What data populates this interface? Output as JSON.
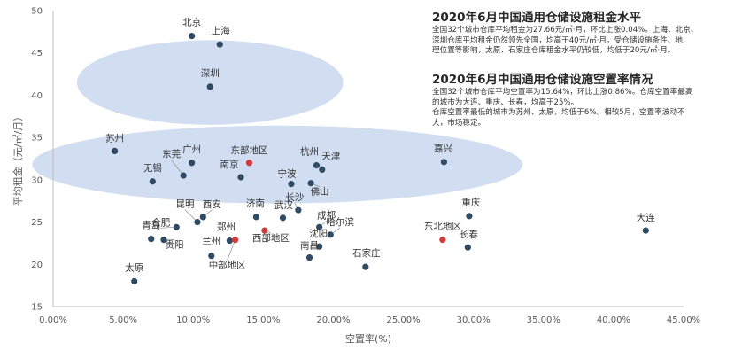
{
  "chart_data": {
    "type": "scatter",
    "xlabel": "空置率(%)",
    "ylabel": "平均租金（元/㎡/月）",
    "xlim": [
      0,
      45
    ],
    "ylim": [
      15,
      50
    ],
    "x_ticks": [
      "0.00%",
      "5.00%",
      "10.00%",
      "15.00%",
      "20.00%",
      "25.00%",
      "30.00%",
      "35.00%",
      "40.00%",
      "45.00%"
    ],
    "y_ticks": [
      "15",
      "20",
      "25",
      "30",
      "35",
      "40",
      "45",
      "50"
    ],
    "x_tick_values": [
      0,
      5,
      10,
      15,
      20,
      25,
      30,
      35,
      40,
      45
    ],
    "y_tick_values": [
      15,
      20,
      25,
      30,
      35,
      40,
      45,
      50
    ],
    "colors": {
      "city": "#2f4a63",
      "region": "#d23b3b",
      "cluster": "#c9d7ee"
    },
    "clusters": [
      {
        "cx": 11.2,
        "cy": 41.5,
        "rx": 9.5,
        "ry": 5.0
      },
      {
        "cx": 16.0,
        "cy": 31.8,
        "rx": 17.5,
        "ry": 4.6
      }
    ],
    "points": [
      {
        "name": "北京",
        "x": 9.9,
        "y": 47.0,
        "kind": "city"
      },
      {
        "name": "上海",
        "x": 11.9,
        "y": 46.0,
        "kind": "city"
      },
      {
        "name": "深圳",
        "x": 11.2,
        "y": 41.0,
        "kind": "city"
      },
      {
        "name": "苏州",
        "x": 4.4,
        "y": 33.4,
        "kind": "city"
      },
      {
        "name": "东莞",
        "x": 9.3,
        "y": 30.5,
        "kind": "city"
      },
      {
        "name": "广州",
        "x": 9.9,
        "y": 32.0,
        "kind": "city"
      },
      {
        "name": "无锡",
        "x": 7.1,
        "y": 29.8,
        "kind": "city"
      },
      {
        "name": "东部地区",
        "x": 14.0,
        "y": 32.0,
        "kind": "region"
      },
      {
        "name": "南京",
        "x": 13.4,
        "y": 30.3,
        "kind": "city"
      },
      {
        "name": "杭州",
        "x": 18.8,
        "y": 31.7,
        "kind": "city"
      },
      {
        "name": "天津",
        "x": 19.2,
        "y": 31.2,
        "kind": "city"
      },
      {
        "name": "宁波",
        "x": 17.0,
        "y": 29.5,
        "kind": "city"
      },
      {
        "name": "佛山",
        "x": 18.4,
        "y": 29.6,
        "kind": "city"
      },
      {
        "name": "嘉兴",
        "x": 27.9,
        "y": 32.1,
        "kind": "city"
      },
      {
        "name": "西安",
        "x": 10.7,
        "y": 25.6,
        "kind": "city"
      },
      {
        "name": "昆明",
        "x": 10.3,
        "y": 25.0,
        "kind": "city"
      },
      {
        "name": "合肥",
        "x": 8.8,
        "y": 24.4,
        "kind": "city"
      },
      {
        "name": "济南",
        "x": 14.5,
        "y": 25.6,
        "kind": "city"
      },
      {
        "name": "长沙",
        "x": 17.5,
        "y": 26.4,
        "kind": "city"
      },
      {
        "name": "武汉",
        "x": 16.4,
        "y": 25.5,
        "kind": "city"
      },
      {
        "name": "成都",
        "x": 19.0,
        "y": 24.4,
        "kind": "city"
      },
      {
        "name": "哈尔滨",
        "x": 19.8,
        "y": 23.5,
        "kind": "city"
      },
      {
        "name": "沈阳",
        "x": 19.0,
        "y": 22.1,
        "kind": "city"
      },
      {
        "name": "重庆",
        "x": 29.7,
        "y": 25.7,
        "kind": "city"
      },
      {
        "name": "东北地区",
        "x": 27.8,
        "y": 22.9,
        "kind": "region"
      },
      {
        "name": "长春",
        "x": 29.6,
        "y": 22.0,
        "kind": "city"
      },
      {
        "name": "大连",
        "x": 42.3,
        "y": 24.0,
        "kind": "city"
      },
      {
        "name": "青岛",
        "x": 7.0,
        "y": 23.0,
        "kind": "city"
      },
      {
        "name": "贵阳",
        "x": 7.9,
        "y": 22.9,
        "kind": "city"
      },
      {
        "name": "郑州",
        "x": 12.6,
        "y": 22.8,
        "kind": "city"
      },
      {
        "name": "中部地区",
        "x": 13.0,
        "y": 22.9,
        "kind": "region"
      },
      {
        "name": "西部地区",
        "x": 15.1,
        "y": 24.0,
        "kind": "region"
      },
      {
        "name": "兰州",
        "x": 11.3,
        "y": 21.0,
        "kind": "city"
      },
      {
        "name": "南昌",
        "x": 18.3,
        "y": 20.8,
        "kind": "city"
      },
      {
        "name": "石家庄",
        "x": 22.3,
        "y": 19.7,
        "kind": "city"
      },
      {
        "name": "太原",
        "x": 5.8,
        "y": 18.0,
        "kind": "city"
      }
    ]
  },
  "info": {
    "rent_title": "2020年6月中国通用仓储设施租金水平",
    "rent_lines": [
      "全国32个城市仓库平均租金为27.66元/㎡·月，环比上涨0.04%。上海、北京、",
      "深圳仓库平均租金仍然领先全国，均高于40元/㎡·月。受仓储设施条件、地",
      "理位置等影响，太原、石家庄仓库租金水平仍较低，均低于20元/㎡·月。"
    ],
    "vacancy_title": "2020年6月中国通用仓储设施空置率情况",
    "vacancy_lines": [
      "全国32个城市仓库平均空置率为15.64%，环比上涨0.86%。仓库空置率最高",
      "的城市为大连、重庆、长春，均高于25%。",
      "仓库空置率最低的城市为苏州、太原，均低于6%。相较5月，空置率波动不",
      "大，市场稳定。"
    ]
  }
}
